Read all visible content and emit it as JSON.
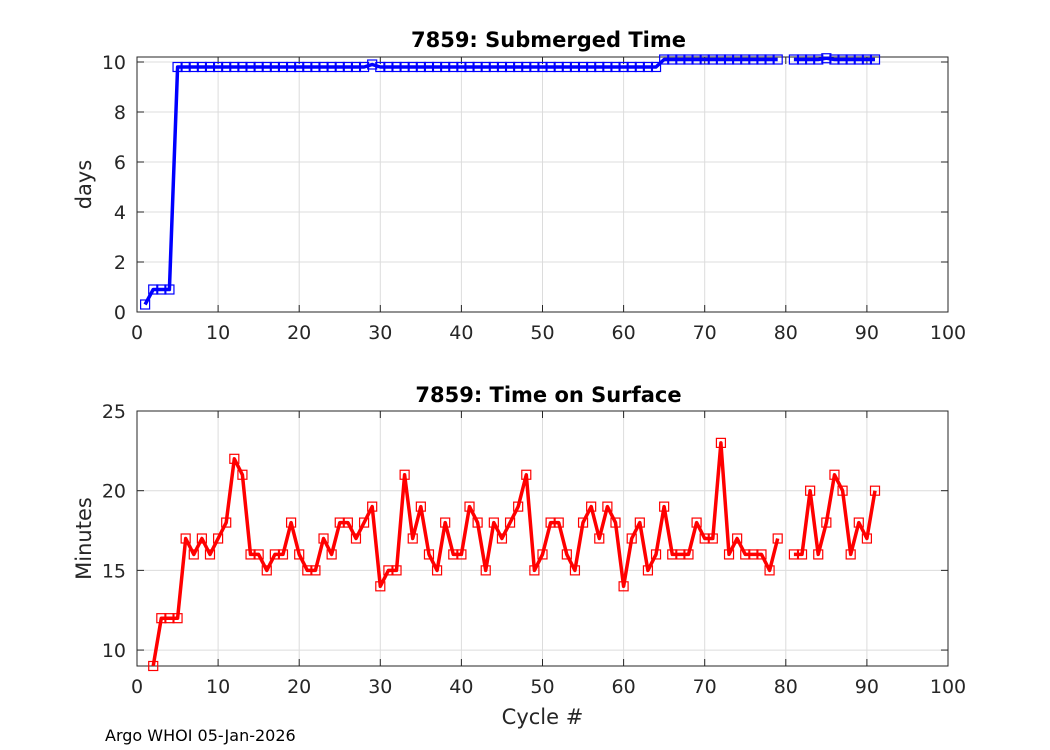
{
  "footer": "Argo WHOI 05-Jan-2026",
  "chart_data": [
    {
      "type": "line",
      "title": "7859: Submerged Time",
      "xlabel": "",
      "ylabel": "days",
      "xlim": [
        0,
        100
      ],
      "ylim": [
        0,
        10.2
      ],
      "xticks": [
        0,
        10,
        20,
        30,
        40,
        50,
        60,
        70,
        80,
        90,
        100
      ],
      "yticks": [
        0,
        2,
        4,
        6,
        8,
        10
      ],
      "grid": true,
      "series": [
        {
          "name": "Submerged Time",
          "color": "#0000ff",
          "marker": "square",
          "x": [
            1,
            2,
            3,
            4,
            5,
            6,
            7,
            8,
            9,
            10,
            11,
            12,
            13,
            14,
            15,
            16,
            17,
            18,
            19,
            20,
            21,
            22,
            23,
            24,
            25,
            26,
            27,
            28,
            29,
            30,
            31,
            32,
            33,
            34,
            35,
            36,
            37,
            38,
            39,
            40,
            41,
            42,
            43,
            44,
            45,
            46,
            47,
            48,
            49,
            50,
            51,
            52,
            53,
            54,
            55,
            56,
            57,
            58,
            59,
            60,
            61,
            62,
            63,
            64,
            65,
            66,
            67,
            68,
            69,
            70,
            71,
            72,
            73,
            74,
            75,
            76,
            77,
            78,
            79,
            null,
            81,
            82,
            83,
            84,
            85,
            86,
            87,
            88,
            89,
            90,
            91
          ],
          "y": [
            0.3,
            0.9,
            0.9,
            0.9,
            9.8,
            9.8,
            9.8,
            9.8,
            9.8,
            9.8,
            9.8,
            9.8,
            9.8,
            9.8,
            9.8,
            9.8,
            9.8,
            9.8,
            9.8,
            9.8,
            9.8,
            9.8,
            9.8,
            9.8,
            9.8,
            9.8,
            9.8,
            9.8,
            9.9,
            9.8,
            9.8,
            9.8,
            9.8,
            9.8,
            9.8,
            9.8,
            9.8,
            9.8,
            9.8,
            9.8,
            9.8,
            9.8,
            9.8,
            9.8,
            9.8,
            9.8,
            9.8,
            9.8,
            9.8,
            9.8,
            9.8,
            9.8,
            9.8,
            9.8,
            9.8,
            9.8,
            9.8,
            9.8,
            9.8,
            9.8,
            9.8,
            9.8,
            9.8,
            9.8,
            10.1,
            10.1,
            10.1,
            10.1,
            10.1,
            10.1,
            10.1,
            10.1,
            10.1,
            10.1,
            10.1,
            10.1,
            10.1,
            10.1,
            10.1,
            null,
            10.1,
            10.1,
            10.1,
            10.1,
            10.15,
            10.1,
            10.1,
            10.1,
            10.1,
            10.1,
            10.1
          ]
        }
      ]
    },
    {
      "type": "line",
      "title": "7859: Time on Surface",
      "xlabel": "Cycle #",
      "ylabel": "Minutes",
      "xlim": [
        0,
        100
      ],
      "ylim": [
        9,
        25
      ],
      "xticks": [
        0,
        10,
        20,
        30,
        40,
        50,
        60,
        70,
        80,
        90,
        100
      ],
      "yticks": [
        10,
        15,
        20,
        25
      ],
      "grid": true,
      "series": [
        {
          "name": "Time on Surface",
          "color": "#ff0000",
          "marker": "square",
          "x": [
            2,
            3,
            4,
            5,
            6,
            7,
            8,
            9,
            10,
            11,
            12,
            13,
            14,
            15,
            16,
            17,
            18,
            19,
            20,
            21,
            22,
            23,
            24,
            25,
            26,
            27,
            28,
            29,
            30,
            31,
            32,
            33,
            34,
            35,
            36,
            37,
            38,
            39,
            40,
            41,
            42,
            43,
            44,
            45,
            46,
            47,
            48,
            49,
            50,
            51,
            52,
            53,
            54,
            55,
            56,
            57,
            58,
            59,
            60,
            61,
            62,
            63,
            64,
            65,
            66,
            67,
            68,
            69,
            70,
            71,
            72,
            73,
            74,
            75,
            76,
            77,
            78,
            79,
            null,
            81,
            82,
            83,
            84,
            85,
            86,
            87,
            88,
            89,
            90,
            91
          ],
          "y": [
            9,
            12,
            12,
            12,
            17,
            16,
            17,
            16,
            17,
            18,
            22,
            21,
            16,
            16,
            15,
            16,
            16,
            18,
            16,
            15,
            15,
            17,
            16,
            18,
            18,
            17,
            18,
            19,
            14,
            15,
            15,
            21,
            17,
            19,
            16,
            15,
            18,
            16,
            16,
            19,
            18,
            15,
            18,
            17,
            18,
            19,
            21,
            15,
            16,
            18,
            18,
            16,
            15,
            18,
            19,
            17,
            19,
            18,
            14,
            17,
            18,
            15,
            16,
            19,
            16,
            16,
            16,
            18,
            17,
            17,
            23,
            16,
            17,
            16,
            16,
            16,
            15,
            17,
            null,
            16,
            16,
            20,
            16,
            18,
            21,
            20,
            16,
            18,
            17,
            20
          ]
        }
      ]
    }
  ]
}
